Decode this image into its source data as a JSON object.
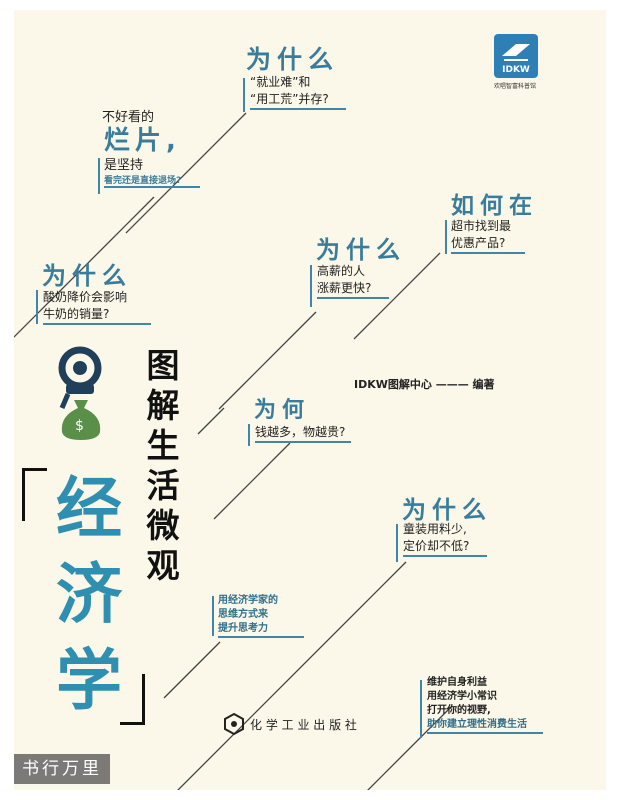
{
  "publisher_logo": {
    "abbr": "IDKW",
    "caption": "欢唱智富科普馆"
  },
  "title": {
    "main": "图解生活微观",
    "subject_chars": [
      "经",
      "济",
      "学"
    ]
  },
  "author": "IDKW图解中心 ——— 编著",
  "questions": {
    "q1": {
      "head": "为什么",
      "lines": [
        "“就业难”和",
        "“用工荒”并存?"
      ]
    },
    "q2": {
      "intro": "不好看的",
      "big": "烂片,",
      "lines": [
        "是坚持"
      ],
      "small": "看完还是直接退场?"
    },
    "q3": {
      "head": "如何在",
      "lines": [
        "超市找到最",
        "优惠产品?"
      ]
    },
    "q4": {
      "head": "为什么",
      "lines": [
        "高薪的人",
        "涨薪更快?"
      ]
    },
    "q5": {
      "head": "为什么",
      "lines": [
        "酸奶降价会影响",
        "牛奶的销量?"
      ]
    },
    "q6": {
      "head": "为何",
      "lines": [
        "钱越多，物越贵?"
      ]
    },
    "q7": {
      "head": "为什么",
      "lines": [
        "童装用料少,",
        "定价却不低?"
      ]
    }
  },
  "slogan": [
    "用经济学家的",
    "思维方式来",
    "提升思考力"
  ],
  "promo": [
    "维护自身利益",
    "用经济学小常识",
    "打开你的视野,",
    "助你建立理性消费生活"
  ],
  "press": "化 学 工 业 出 版 社",
  "watermark": "书行万里",
  "icons": [
    "idkw-logo-icon",
    "binoculars-icon",
    "money-bag-icon",
    "press-logo-icon"
  ],
  "colors": {
    "accent": "#3a7c9b",
    "background": "#fbf8e9",
    "money": "#5a8f4a"
  }
}
